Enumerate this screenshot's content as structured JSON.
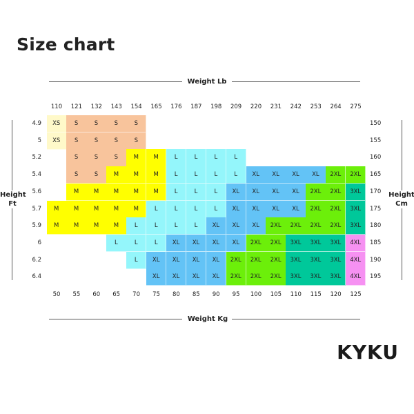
{
  "title": "Size chart",
  "brand": "KYKU",
  "chart_data": {
    "type": "heatmap",
    "x_top_label": "Weight Lb",
    "x_bottom_label": "Weight Kg",
    "y_left_label": "Height Ft",
    "y_right_label": "Height Cm",
    "x_lb": [
      "110",
      "121",
      "132",
      "143",
      "154",
      "165",
      "176",
      "187",
      "198",
      "209",
      "220",
      "231",
      "242",
      "253",
      "264",
      "275"
    ],
    "x_kg": [
      "50",
      "55",
      "60",
      "65",
      "70",
      "75",
      "80",
      "85",
      "90",
      "95",
      "100",
      "105",
      "110",
      "115",
      "120",
      "125"
    ],
    "y_ft": [
      "4.9",
      "5",
      "5.2",
      "5.4",
      "5.6",
      "5.7",
      "5.9",
      "6",
      "6.2",
      "6.4"
    ],
    "y_cm": [
      "150",
      "155",
      "160",
      "165",
      "170",
      "175",
      "180",
      "185",
      "190",
      "195"
    ],
    "grid": [
      [
        "XS",
        "S",
        "S",
        "S",
        "S",
        "",
        "",
        "",
        "",
        "",
        "",
        "",
        "",
        "",
        "",
        ""
      ],
      [
        "XS",
        "S",
        "S",
        "S",
        "S",
        "",
        "",
        "",
        "",
        "",
        "",
        "",
        "",
        "",
        "",
        ""
      ],
      [
        "",
        "S",
        "S",
        "S",
        "M",
        "M",
        "L",
        "L",
        "L",
        "L",
        "",
        "",
        "",
        "",
        "",
        ""
      ],
      [
        "",
        "S",
        "S",
        "M",
        "M",
        "M",
        "L",
        "L",
        "L",
        "L",
        "XL",
        "XL",
        "XL",
        "XL",
        "2XL",
        "2XL"
      ],
      [
        "",
        "M",
        "M",
        "M",
        "M",
        "M",
        "L",
        "L",
        "L",
        "XL",
        "XL",
        "XL",
        "XL",
        "2XL",
        "2XL",
        "3XL"
      ],
      [
        "M",
        "M",
        "M",
        "M",
        "M",
        "L",
        "L",
        "L",
        "L",
        "XL",
        "XL",
        "XL",
        "XL",
        "2XL",
        "2XL",
        "3XL"
      ],
      [
        "M",
        "M",
        "M",
        "M",
        "L",
        "L",
        "L",
        "L",
        "XL",
        "XL",
        "XL",
        "2XL",
        "2XL",
        "2XL",
        "2XL",
        "3XL"
      ],
      [
        "",
        "",
        "",
        "L",
        "L",
        "L",
        "XL",
        "XL",
        "XL",
        "XL",
        "2XL",
        "2XL",
        "3XL",
        "3XL",
        "3XL",
        "4XL"
      ],
      [
        "",
        "",
        "",
        "",
        "L",
        "XL",
        "XL",
        "XL",
        "XL",
        "2XL",
        "2XL",
        "2XL",
        "3XL",
        "3XL",
        "3XL",
        "4XL"
      ],
      [
        "",
        "",
        "",
        "",
        "",
        "XL",
        "XL",
        "XL",
        "XL",
        "2XL",
        "2XL",
        "2XL",
        "3XL",
        "3XL",
        "3XL",
        "4XL"
      ]
    ],
    "size_colors": {
      "XS": "#fff9c9",
      "S": "#f8c49c",
      "M": "#ffff00",
      "L": "#94f6fb",
      "XL": "#63c3f6",
      "2XL": "#6cef0a",
      "3XL": "#00c89a",
      "4XL": "#f691f2"
    }
  }
}
